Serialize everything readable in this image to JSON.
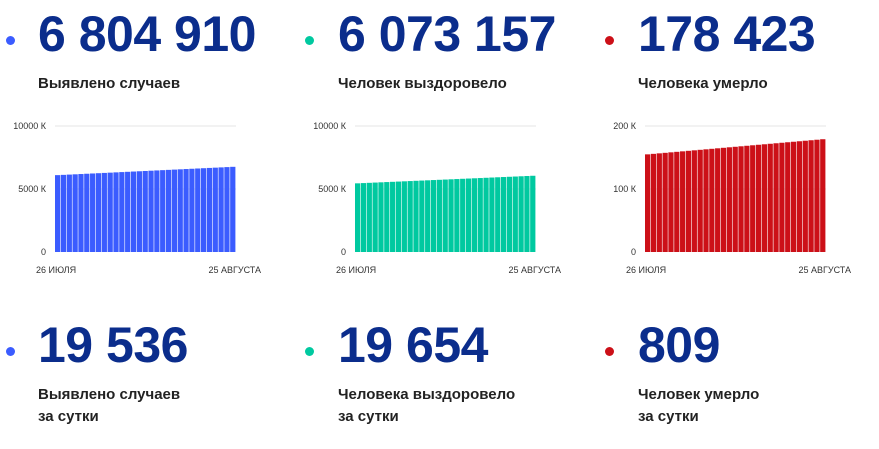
{
  "totals": [
    {
      "value": "6 804 910",
      "label": "Выявлено случаев",
      "color": "#3b5cff"
    },
    {
      "value": "6 073 157",
      "label": "Человек выздоровело",
      "color": "#00c9a0"
    },
    {
      "value": "178 423",
      "label": "Человека умерло",
      "color": "#cc1018"
    }
  ],
  "daily": [
    {
      "value": "19 536",
      "label_line1": "Выявлено случаев",
      "label_line2": "за сутки",
      "color": "#3b5cff"
    },
    {
      "value": "19 654",
      "label_line1": "Человека выздоровело",
      "label_line2": "за сутки",
      "color": "#00c9a0"
    },
    {
      "value": "809",
      "label_line1": "Человек умерло",
      "label_line2": "за сутки",
      "color": "#cc1018"
    }
  ],
  "chart_data": [
    {
      "type": "bar",
      "title": "",
      "x_start_label": "26 ИЮЛЯ",
      "x_end_label": "25 АВГУСТА",
      "y_ticks": [
        "0",
        "5000 К",
        "10000 К"
      ],
      "ylim": [
        0,
        10000
      ],
      "unit": "К",
      "color": "#3b5cff",
      "grid": true,
      "values": [
        6100,
        6122,
        6144,
        6166,
        6188,
        6210,
        6232,
        6254,
        6276,
        6298,
        6320,
        6342,
        6364,
        6386,
        6408,
        6430,
        6452,
        6474,
        6496,
        6518,
        6540,
        6562,
        6584,
        6606,
        6628,
        6650,
        6672,
        6694,
        6716,
        6738,
        6760
      ]
    },
    {
      "type": "bar",
      "title": "",
      "x_start_label": "26 ИЮЛЯ",
      "x_end_label": "25 АВГУСТА",
      "y_ticks": [
        "0",
        "5000 К",
        "10000 К"
      ],
      "ylim": [
        0,
        10000
      ],
      "unit": "К",
      "color": "#00c9a0",
      "grid": true,
      "values": [
        5450,
        5470,
        5490,
        5510,
        5530,
        5550,
        5570,
        5590,
        5610,
        5630,
        5650,
        5670,
        5690,
        5710,
        5730,
        5750,
        5770,
        5790,
        5810,
        5830,
        5850,
        5870,
        5890,
        5910,
        5930,
        5950,
        5970,
        5990,
        6010,
        6030,
        6050
      ]
    },
    {
      "type": "bar",
      "title": "",
      "x_start_label": "26 ИЮЛЯ",
      "x_end_label": "25 АВГУСТА",
      "y_ticks": [
        "0",
        "100 К",
        "200 К"
      ],
      "ylim": [
        0,
        200
      ],
      "unit": "К",
      "color": "#cc1018",
      "grid": true,
      "values": [
        155,
        155.8,
        156.6,
        157.4,
        158.2,
        159,
        159.8,
        160.6,
        161.4,
        162.2,
        163,
        163.8,
        164.6,
        165.4,
        166.2,
        167,
        167.8,
        168.6,
        169.4,
        170.2,
        171,
        171.8,
        172.6,
        173.4,
        174.2,
        175,
        175.8,
        176.6,
        177.4,
        178.2,
        179
      ]
    }
  ]
}
